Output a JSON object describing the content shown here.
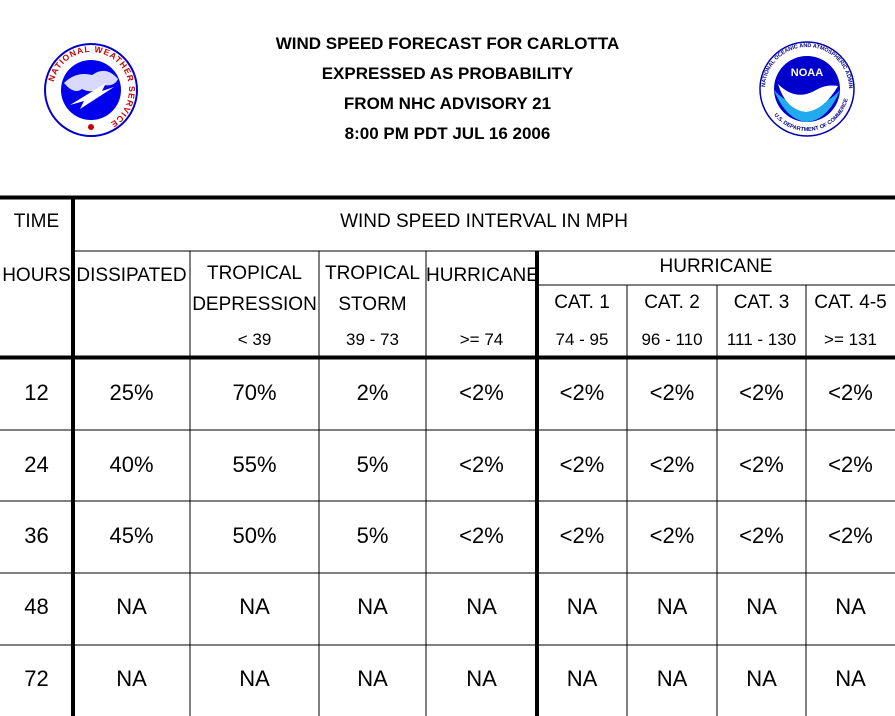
{
  "title": {
    "line1": "WIND SPEED FORECAST FOR CARLOTTA",
    "line2": "EXPRESSED AS PROBABILITY",
    "line3": "FROM NHC ADVISORY   21",
    "line4": "8:00 PM PDT JUL 16 2006"
  },
  "logos": {
    "nws_text": "NATIONAL WEATHER SERVICE",
    "noaa_label": "NOAA",
    "noaa_text": "NATIONAL OCEANIC AND ATMOSPHERIC ADMINISTRATION",
    "noaa_text_bottom": "U.S. DEPARTMENT OF COMMERCE"
  },
  "table": {
    "time_label": "TIME",
    "hours_label": "HOURS",
    "interval_label": "WIND SPEED INTERVAL IN MPH",
    "dissipated": "DISSIPATED",
    "td_line1": "TROPICAL",
    "td_line2": "DEPRESSION",
    "td_range": "< 39",
    "ts_line1": "TROPICAL",
    "ts_line2": "STORM",
    "ts_range": "39 - 73",
    "hurr_label": "HURRICANE",
    "hurr_range": ">= 74",
    "hurr_group": "HURRICANE",
    "cat1": "CAT. 1",
    "cat1_range": "74 - 95",
    "cat2": "CAT. 2",
    "cat2_range": "96 - 110",
    "cat3": "CAT. 3",
    "cat3_range": "111 - 130",
    "cat45": "CAT. 4-5",
    "cat45_range": ">= 131",
    "rows": [
      {
        "hours": "12",
        "values": [
          "25%",
          "70%",
          "2%",
          "<2%",
          "<2%",
          "<2%",
          "<2%",
          "<2%"
        ]
      },
      {
        "hours": "24",
        "values": [
          "40%",
          "55%",
          "5%",
          "<2%",
          "<2%",
          "<2%",
          "<2%",
          "<2%"
        ]
      },
      {
        "hours": "36",
        "values": [
          "45%",
          "50%",
          "5%",
          "<2%",
          "<2%",
          "<2%",
          "<2%",
          "<2%"
        ]
      },
      {
        "hours": "48",
        "values": [
          "NA",
          "NA",
          "NA",
          "NA",
          "NA",
          "NA",
          "NA",
          "NA"
        ]
      },
      {
        "hours": "72",
        "values": [
          "NA",
          "NA",
          "NA",
          "NA",
          "NA",
          "NA",
          "NA",
          "NA"
        ]
      }
    ]
  }
}
